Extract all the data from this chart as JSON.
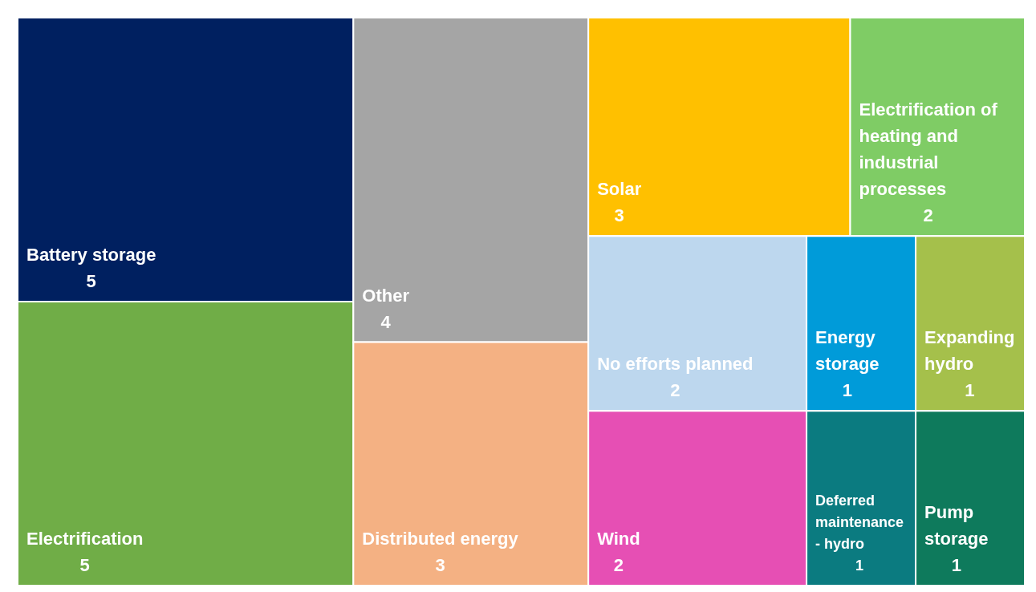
{
  "chart_data": {
    "type": "other",
    "categories": [
      "Battery storage",
      "Electrification",
      "Other",
      "Distributed energy",
      "Solar",
      "Electrification of heating and industrial processes",
      "No efforts planned",
      "Wind",
      "Energy storage",
      "Expanding hydro",
      "Deferred maintenance - hydro",
      "Pump storage"
    ],
    "values": [
      5,
      5,
      4,
      3,
      3,
      2,
      2,
      2,
      1,
      1,
      1,
      1
    ],
    "colors": [
      "#002060",
      "#70ad47",
      "#a5a5a5",
      "#f4b183",
      "#ffc000",
      "#7fcc65",
      "#bdd7ee",
      "#e64fb4",
      "#009bd9",
      "#a5c04b",
      "#0b7b80",
      "#0e7a5c"
    ],
    "data_labels": true
  }
}
